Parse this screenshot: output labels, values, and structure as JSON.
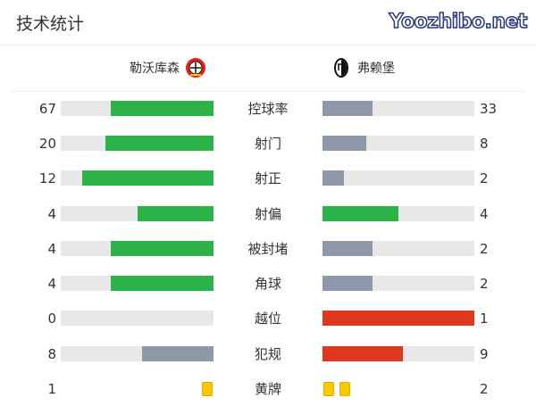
{
  "title": "技术统计",
  "home": {
    "name": "勒沃库森",
    "badge": "bayer-leverkusen-crest"
  },
  "away": {
    "name": "弗赖堡",
    "badge": "sc-freiburg-crest"
  },
  "colors": {
    "green": "#2db24a",
    "gray": "#8e98a8",
    "red": "#e0381e",
    "track": "#e8e8e8",
    "yellow": "#f9c800"
  },
  "stats": [
    {
      "label": "控球率",
      "home": "67",
      "away": "33",
      "home_frac": 0.67,
      "away_frac": 0.33,
      "home_color": "green",
      "away_color": "gray"
    },
    {
      "label": "射门",
      "home": "20",
      "away": "8",
      "home_frac": 0.71,
      "away_frac": 0.29,
      "home_color": "green",
      "away_color": "gray"
    },
    {
      "label": "射正",
      "home": "12",
      "away": "2",
      "home_frac": 0.86,
      "away_frac": 0.14,
      "home_color": "green",
      "away_color": "gray"
    },
    {
      "label": "射偏",
      "home": "4",
      "away": "4",
      "home_frac": 0.5,
      "away_frac": 0.5,
      "home_color": "green",
      "away_color": "green"
    },
    {
      "label": "被封堵",
      "home": "4",
      "away": "2",
      "home_frac": 0.67,
      "away_frac": 0.33,
      "home_color": "green",
      "away_color": "gray"
    },
    {
      "label": "角球",
      "home": "4",
      "away": "2",
      "home_frac": 0.67,
      "away_frac": 0.33,
      "home_color": "green",
      "away_color": "gray"
    },
    {
      "label": "越位",
      "home": "0",
      "away": "1",
      "home_frac": 0,
      "away_frac": 1,
      "home_color": "green",
      "away_color": "red"
    },
    {
      "label": "犯规",
      "home": "8",
      "away": "9",
      "home_frac": 0.47,
      "away_frac": 0.53,
      "home_color": "gray",
      "away_color": "red"
    }
  ],
  "cards": {
    "label": "黄牌",
    "home": "1",
    "away": "2",
    "home_count": 1,
    "away_count": 2
  },
  "watermark": "Yoozhibo.net"
}
